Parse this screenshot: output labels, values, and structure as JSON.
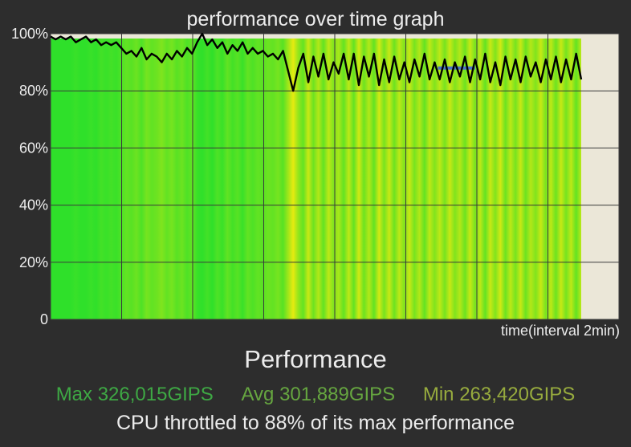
{
  "title": "performance over time graph",
  "chart_data": {
    "type": "area",
    "title": "performance over time graph",
    "xlabel": "time(interval 2min)",
    "ylabel": "",
    "y_tick_labels": [
      "100%",
      "80%",
      "60%",
      "40%",
      "20%",
      "0"
    ],
    "ylim": [
      0,
      100
    ],
    "grid": true,
    "series": [
      {
        "values": [
          99,
          98,
          99,
          98,
          99,
          97,
          98,
          99,
          97,
          98,
          96,
          97,
          96,
          97,
          95,
          93,
          94,
          92,
          95,
          91,
          93,
          92,
          90,
          93,
          91,
          94,
          92,
          95,
          93,
          97,
          100,
          96,
          98,
          95,
          97,
          93,
          96,
          94,
          97,
          93,
          95,
          93,
          94,
          92,
          93,
          91,
          94,
          87,
          80,
          88,
          93,
          83,
          92,
          85,
          93,
          84,
          90,
          86,
          93,
          84,
          93,
          82,
          92,
          85,
          93,
          82,
          91,
          83,
          92,
          84,
          90,
          83,
          91,
          85,
          93,
          84,
          90,
          84,
          91,
          83,
          90,
          85,
          92,
          83,
          91,
          84,
          93,
          83,
          90,
          82,
          92,
          84,
          91,
          83,
          92,
          85,
          90,
          83,
          91,
          84,
          92,
          83,
          91,
          84,
          93,
          84
        ]
      }
    ],
    "reference_band": {
      "value": 88,
      "x_start_fraction": 0.73,
      "x_end_fraction": 0.8,
      "color": "#4a72c8"
    },
    "colors": {
      "background": "#2d2d2d",
      "plot_bg": "#ebe7d8",
      "gridline": "#3a3a3a",
      "fill_high": "#2fe02a",
      "fill_low": "#e6ea10",
      "line": "#000000"
    }
  },
  "performance": {
    "heading": "Performance",
    "max": "Max 326,015GIPS",
    "avg": "Avg 301,889GIPS",
    "min": "Min 263,420GIPS",
    "throttle": "CPU throttled to 88% of its max performance"
  }
}
